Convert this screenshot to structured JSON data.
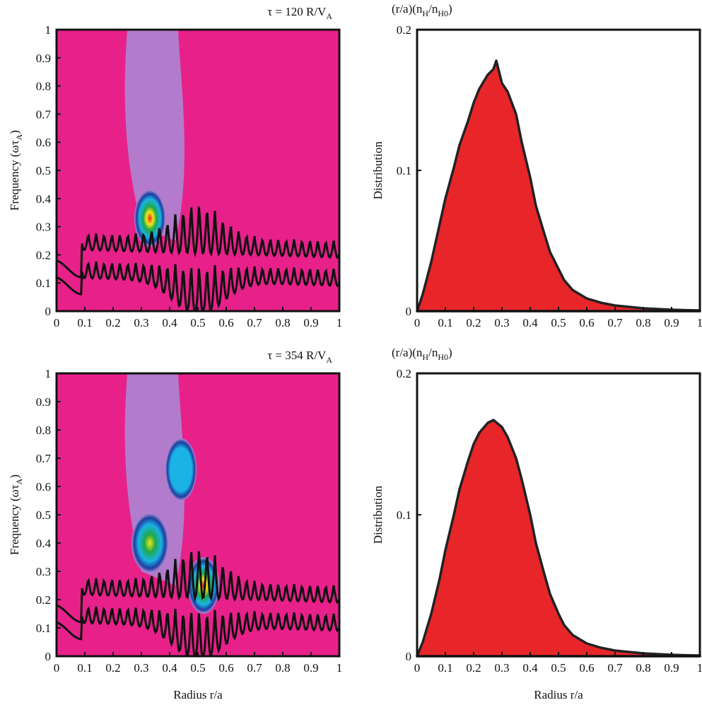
{
  "figure": {
    "x_axis_label": "Radius r/a",
    "top_label_html": "(r/a)(n<tspan dy='5' font-size='12'>H</tspan><tspan dy='-5'>/n</tspan><tspan dy='5' font-size='12'>H0</tspan><tspan dy='-5'>)</tspan>"
  },
  "chart_data": [
    {
      "type": "heatmap",
      "title": "τ = 120 R/V_A",
      "title_main": "τ = 120 R/V",
      "title_sub": "A",
      "xlabel": "",
      "ylabel": "Frequency (ωτ_A)",
      "xlim": [
        0,
        1
      ],
      "ylim": [
        0,
        1
      ],
      "xticks": [
        "0",
        "0.1",
        "0.2",
        "0.3",
        "0.4",
        "0.5",
        "0.6",
        "0.7",
        "0.8",
        "0.9",
        "1"
      ],
      "yticks": [
        "0",
        "0.1",
        "0.2",
        "0.3",
        "0.4",
        "0.5",
        "0.6",
        "0.7",
        "0.8",
        "0.9",
        "1"
      ],
      "background_color": "#e8218a",
      "colormap": [
        "#e8218a",
        "#a98bd6",
        "#1f3c9e",
        "#19b3e6",
        "#1ea84a",
        "#f5e61a",
        "#e8241c"
      ],
      "hotspots": [
        {
          "r": 0.33,
          "freq": 0.33,
          "level": "peak"
        }
      ]
    },
    {
      "type": "area",
      "title": "(r/a)(n_H/n_H0)",
      "xlabel": "",
      "ylabel": "Distribution",
      "xlim": [
        0,
        1
      ],
      "ylim": [
        0,
        0.2
      ],
      "xticks": [
        "0",
        "0.1",
        "0.2",
        "0.3",
        "0.4",
        "0.5",
        "0.6",
        "0.7",
        "0.8",
        "0.9",
        "1"
      ],
      "yticks": [
        "0",
        "0.1",
        "0.2"
      ],
      "fill_color": "#e8262a",
      "x": [
        0,
        0.02,
        0.05,
        0.08,
        0.1,
        0.13,
        0.15,
        0.18,
        0.2,
        0.22,
        0.25,
        0.27,
        0.28,
        0.3,
        0.32,
        0.35,
        0.37,
        0.4,
        0.42,
        0.45,
        0.47,
        0.5,
        0.52,
        0.55,
        0.6,
        0.65,
        0.7,
        0.75,
        0.8,
        0.85,
        0.9,
        0.95,
        1.0
      ],
      "values": [
        0,
        0.012,
        0.035,
        0.062,
        0.08,
        0.102,
        0.118,
        0.135,
        0.148,
        0.158,
        0.168,
        0.172,
        0.178,
        0.162,
        0.156,
        0.14,
        0.12,
        0.095,
        0.075,
        0.055,
        0.042,
        0.03,
        0.022,
        0.015,
        0.009,
        0.006,
        0.004,
        0.003,
        0.002,
        0.0015,
        0.001,
        0.0007,
        0.0005
      ]
    },
    {
      "type": "heatmap",
      "title": "τ = 354 R/V_A",
      "title_main": "τ = 354 R/V",
      "title_sub": "A",
      "xlabel": "Radius r/a",
      "ylabel": "Frequency (ωτ_A)",
      "xlim": [
        0,
        1
      ],
      "ylim": [
        0,
        1
      ],
      "xticks": [
        "0",
        "0.1",
        "0.2",
        "0.3",
        "0.4",
        "0.5",
        "0.6",
        "0.7",
        "0.8",
        "0.9",
        "1"
      ],
      "yticks": [
        "0",
        "0.1",
        "0.2",
        "0.3",
        "0.4",
        "0.5",
        "0.6",
        "0.7",
        "0.8",
        "0.9",
        "1"
      ],
      "background_color": "#e8218a",
      "colormap": [
        "#e8218a",
        "#a98bd6",
        "#1f3c9e",
        "#19b3e6",
        "#1ea84a",
        "#f5e61a",
        "#e8241c"
      ],
      "hotspots": [
        {
          "r": 0.33,
          "freq": 0.4,
          "level": "high"
        },
        {
          "r": 0.52,
          "freq": 0.25,
          "level": "peak"
        },
        {
          "r": 0.44,
          "freq": 0.66,
          "level": "mid"
        }
      ]
    },
    {
      "type": "area",
      "title": "(r/a)(n_H/n_H0)",
      "xlabel": "Radius r/a",
      "ylabel": "Distribution",
      "xlim": [
        0,
        1
      ],
      "ylim": [
        0,
        0.2
      ],
      "xticks": [
        "0",
        "0.1",
        "0.2",
        "0.3",
        "0.4",
        "0.5",
        "0.6",
        "0.7",
        "0.8",
        "0.9",
        "1"
      ],
      "yticks": [
        "0",
        "0.1",
        "0.2"
      ],
      "fill_color": "#e8262a",
      "x": [
        0,
        0.02,
        0.05,
        0.08,
        0.1,
        0.13,
        0.15,
        0.18,
        0.2,
        0.22,
        0.25,
        0.27,
        0.3,
        0.32,
        0.35,
        0.37,
        0.4,
        0.42,
        0.45,
        0.47,
        0.5,
        0.52,
        0.55,
        0.6,
        0.65,
        0.7,
        0.75,
        0.8,
        0.85,
        0.9,
        0.95,
        1.0
      ],
      "values": [
        0,
        0.01,
        0.03,
        0.055,
        0.075,
        0.1,
        0.118,
        0.138,
        0.15,
        0.158,
        0.165,
        0.167,
        0.162,
        0.155,
        0.14,
        0.125,
        0.1,
        0.08,
        0.058,
        0.044,
        0.03,
        0.022,
        0.015,
        0.009,
        0.006,
        0.004,
        0.003,
        0.002,
        0.0015,
        0.001,
        0.0007,
        0.0005
      ]
    }
  ]
}
